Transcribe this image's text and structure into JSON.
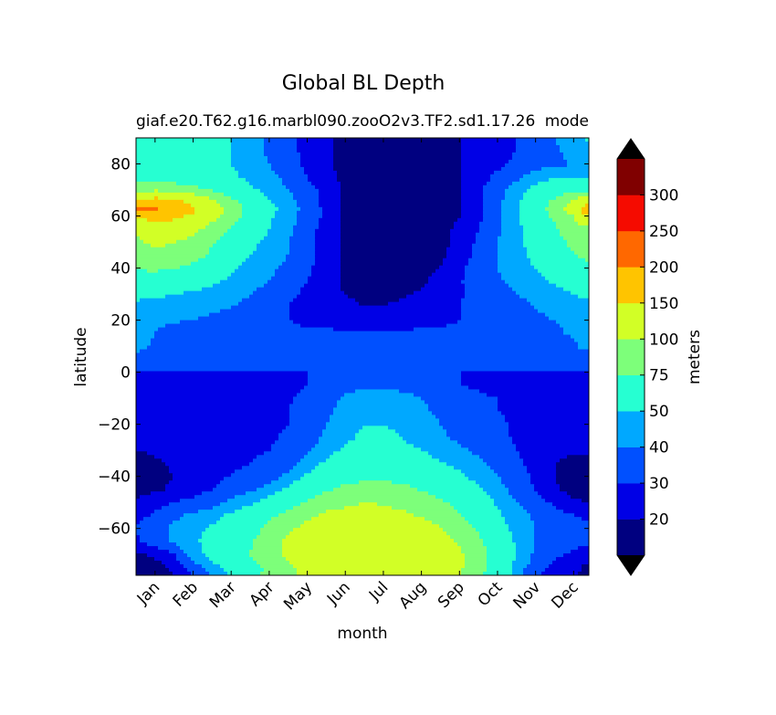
{
  "chart_data": {
    "type": "heatmap",
    "title": "Global BL Depth",
    "subtitle_left": "giaf.e20.T62.g16.marbl090.zooO2v3.TF2.sd1.17.26",
    "subtitle_right": "mode",
    "xlabel": "month",
    "ylabel": "latitude",
    "colorbar_label": "meters",
    "x_ticks": [
      "Jan",
      "Feb",
      "Mar",
      "Apr",
      "May",
      "Jun",
      "Jul",
      "Aug",
      "Sep",
      "Oct",
      "Nov",
      "Dec"
    ],
    "y_ticks": [
      80,
      60,
      40,
      20,
      0,
      -20,
      -40,
      -60
    ],
    "ylim": [
      -78,
      90
    ],
    "xlim": [
      0.5,
      12.4
    ],
    "levels": [
      10,
      20,
      30,
      40,
      50,
      75,
      100,
      150,
      200,
      250,
      300,
      350
    ],
    "level_labels": [
      "20",
      "30",
      "40",
      "50",
      "75",
      "100",
      "150",
      "200",
      "250",
      "300"
    ],
    "colors": [
      "#000080",
      "#0000e6",
      "#0050ff",
      "#00a8ff",
      "#26ffd2",
      "#7dff7a",
      "#d2ff26",
      "#ffc400",
      "#ff6800",
      "#f50b00",
      "#800000"
    ],
    "over_color": "#000000",
    "under_color": "#000000",
    "months": [
      0.5,
      1,
      1.5,
      2,
      2.5,
      3,
      3.5,
      4,
      4.5,
      5,
      5.5,
      6,
      6.5,
      7,
      7.5,
      8,
      8.5,
      9,
      9.5,
      10,
      10.5,
      11,
      11.5,
      12,
      12.4
    ],
    "latitudes": [
      -78,
      -75,
      -70,
      -65,
      -60,
      -55,
      -50,
      -45,
      -40,
      -35,
      -30,
      -25,
      -20,
      -15,
      -10,
      -5,
      0,
      5,
      10,
      15,
      20,
      25,
      30,
      35,
      40,
      45,
      50,
      55,
      60,
      62,
      65,
      70,
      75,
      80,
      85,
      90
    ],
    "z": [
      [
        15,
        14,
        20,
        30,
        40,
        50,
        60,
        85,
        90,
        110,
        115,
        120,
        120,
        120,
        120,
        120,
        110,
        100,
        80,
        60,
        45,
        30,
        25,
        20,
        18
      ],
      [
        15,
        15,
        22,
        35,
        45,
        55,
        65,
        80,
        95,
        110,
        120,
        125,
        125,
        125,
        125,
        125,
        120,
        105,
        85,
        62,
        45,
        35,
        28,
        22,
        18
      ],
      [
        18,
        22,
        30,
        45,
        55,
        65,
        75,
        90,
        105,
        118,
        128,
        130,
        130,
        130,
        130,
        128,
        118,
        105,
        85,
        65,
        50,
        38,
        32,
        28,
        22
      ],
      [
        28,
        35,
        42,
        48,
        54,
        62,
        72,
        90,
        105,
        118,
        126,
        128,
        128,
        128,
        126,
        122,
        112,
        96,
        78,
        60,
        48,
        40,
        36,
        34,
        32
      ],
      [
        32,
        36,
        42,
        47,
        52,
        58,
        66,
        80,
        95,
        108,
        118,
        120,
        122,
        120,
        118,
        112,
        102,
        88,
        72,
        56,
        46,
        40,
        36,
        34,
        32
      ],
      [
        26,
        32,
        38,
        42,
        46,
        52,
        58,
        70,
        82,
        95,
        105,
        108,
        110,
        108,
        105,
        98,
        88,
        75,
        64,
        52,
        44,
        38,
        34,
        30,
        28
      ],
      [
        22,
        26,
        30,
        33,
        36,
        42,
        48,
        56,
        66,
        78,
        88,
        95,
        100,
        98,
        92,
        86,
        78,
        68,
        58,
        48,
        40,
        34,
        28,
        22,
        20
      ],
      [
        16,
        18,
        22,
        26,
        30,
        34,
        38,
        44,
        52,
        62,
        72,
        80,
        84,
        84,
        80,
        74,
        68,
        60,
        52,
        44,
        36,
        30,
        22,
        16,
        15
      ],
      [
        14,
        16,
        20,
        24,
        28,
        30,
        32,
        36,
        42,
        52,
        60,
        66,
        70,
        70,
        68,
        64,
        58,
        52,
        46,
        40,
        34,
        28,
        20,
        14,
        13
      ],
      [
        15,
        18,
        22,
        26,
        28,
        29,
        30,
        32,
        36,
        44,
        52,
        58,
        60,
        60,
        58,
        55,
        51,
        47,
        42,
        37,
        32,
        27,
        21,
        15,
        14
      ],
      [
        20,
        22,
        24,
        26,
        27,
        28,
        29,
        30,
        33,
        38,
        46,
        52,
        54,
        54,
        52,
        50,
        46,
        42,
        38,
        34,
        30,
        26,
        24,
        22,
        22
      ],
      [
        24,
        26,
        27,
        28,
        28,
        28,
        28,
        29,
        31,
        35,
        42,
        48,
        52,
        52,
        50,
        46,
        42,
        38,
        35,
        32,
        29,
        28,
        27,
        26,
        26
      ],
      [
        26,
        27,
        28,
        28,
        28,
        28,
        28,
        29,
        30,
        34,
        40,
        46,
        50,
        50,
        48,
        44,
        40,
        36,
        33,
        31,
        29,
        28,
        28,
        27,
        27
      ],
      [
        27,
        28,
        28,
        28,
        28,
        28,
        28,
        28,
        30,
        33,
        38,
        44,
        48,
        48,
        46,
        42,
        38,
        35,
        32,
        30,
        29,
        28,
        28,
        28,
        28
      ],
      [
        28,
        28,
        28,
        28,
        28,
        28,
        28,
        28,
        29,
        32,
        36,
        42,
        46,
        46,
        44,
        40,
        37,
        34,
        31,
        30,
        29,
        28,
        28,
        28,
        28
      ],
      [
        28,
        28,
        28,
        28,
        28,
        28,
        28,
        28,
        28,
        30,
        32,
        36,
        38,
        38,
        36,
        34,
        32,
        30,
        29,
        28,
        28,
        28,
        28,
        28,
        28
      ],
      [
        30,
        30,
        30,
        30,
        30,
        30,
        30,
        30,
        30,
        30,
        30,
        30,
        30,
        30,
        30,
        30,
        30,
        30,
        30,
        30,
        30,
        30,
        30,
        30,
        30
      ],
      [
        33,
        33,
        33,
        33,
        33,
        33,
        33,
        33,
        33,
        33,
        33,
        33,
        33,
        33,
        33,
        33,
        33,
        33,
        33,
        33,
        33,
        33,
        33,
        33,
        33
      ],
      [
        45,
        38,
        34,
        32,
        31,
        31,
        31,
        31,
        31,
        31,
        31,
        31,
        31,
        31,
        31,
        31,
        31,
        31,
        31,
        31,
        31,
        32,
        34,
        38,
        45
      ],
      [
        46,
        40,
        36,
        34,
        32,
        32,
        32,
        32,
        32,
        32,
        32,
        32,
        32,
        32,
        32,
        32,
        32,
        32,
        32,
        32,
        33,
        35,
        38,
        42,
        46
      ],
      [
        44,
        42,
        41,
        40,
        38,
        36,
        34,
        32,
        30,
        28,
        26,
        24,
        22,
        22,
        24,
        26,
        28,
        30,
        32,
        34,
        36,
        38,
        40,
        42,
        44
      ],
      [
        48,
        46,
        45,
        44,
        42,
        40,
        38,
        34,
        30,
        26,
        24,
        22,
        20,
        20,
        22,
        24,
        26,
        30,
        32,
        34,
        36,
        40,
        44,
        46,
        48
      ],
      [
        52,
        52,
        50,
        48,
        46,
        43,
        40,
        36,
        32,
        28,
        24,
        20,
        18,
        18,
        19,
        21,
        24,
        29,
        33,
        37,
        40,
        43,
        46,
        50,
        52
      ],
      [
        60,
        60,
        58,
        56,
        52,
        48,
        44,
        40,
        35,
        30,
        24,
        18,
        16,
        16,
        17,
        19,
        22,
        29,
        35,
        39,
        42,
        46,
        52,
        56,
        60
      ],
      [
        78,
        80,
        76,
        70,
        60,
        52,
        46,
        42,
        38,
        32,
        25,
        18,
        16,
        16,
        17,
        18,
        20,
        28,
        35,
        40,
        44,
        50,
        58,
        66,
        72
      ],
      [
        90,
        96,
        92,
        84,
        70,
        58,
        50,
        44,
        40,
        34,
        26,
        18,
        16,
        15,
        16,
        17,
        18,
        25,
        33,
        40,
        46,
        54,
        64,
        74,
        80
      ],
      [
        96,
        104,
        100,
        92,
        78,
        64,
        54,
        46,
        40,
        34,
        26,
        18,
        15,
        14,
        15,
        16,
        17,
        23,
        32,
        40,
        46,
        56,
        68,
        80,
        88
      ],
      [
        105,
        125,
        118,
        108,
        90,
        72,
        60,
        50,
        42,
        34,
        26,
        18,
        14,
        13,
        14,
        15,
        17,
        22,
        30,
        38,
        46,
        58,
        72,
        86,
        95
      ],
      [
        150,
        180,
        160,
        140,
        110,
        85,
        65,
        52,
        44,
        36,
        28,
        18,
        14,
        13,
        14,
        15,
        16,
        20,
        28,
        38,
        48,
        62,
        80,
        100,
        140
      ],
      [
        220,
        210,
        190,
        155,
        120,
        90,
        68,
        54,
        45,
        36,
        28,
        18,
        14,
        13,
        14,
        15,
        16,
        20,
        28,
        38,
        48,
        62,
        85,
        120,
        190
      ],
      [
        165,
        185,
        170,
        140,
        110,
        86,
        66,
        52,
        44,
        36,
        26,
        18,
        14,
        13,
        14,
        15,
        16,
        20,
        28,
        38,
        48,
        60,
        82,
        110,
        155
      ],
      [
        90,
        95,
        90,
        82,
        72,
        60,
        52,
        46,
        40,
        34,
        26,
        18,
        15,
        14,
        15,
        16,
        17,
        20,
        28,
        36,
        44,
        54,
        64,
        70,
        70
      ],
      [
        60,
        62,
        62,
        60,
        57,
        52,
        48,
        43,
        37,
        30,
        22,
        18,
        15,
        14,
        15,
        16,
        17,
        20,
        26,
        32,
        38,
        44,
        48,
        48,
        48
      ],
      [
        56,
        58,
        58,
        56,
        54,
        50,
        46,
        40,
        34,
        28,
        22,
        17,
        15,
        14,
        15,
        16,
        17,
        20,
        24,
        28,
        32,
        36,
        38,
        40,
        42
      ],
      [
        54,
        56,
        56,
        56,
        54,
        50,
        44,
        38,
        32,
        28,
        22,
        17,
        15,
        14,
        15,
        16,
        17,
        20,
        23,
        27,
        30,
        34,
        38,
        44,
        48
      ],
      [
        55,
        56,
        56,
        56,
        54,
        50,
        44,
        38,
        32,
        28,
        22,
        17,
        15,
        14,
        15,
        16,
        17,
        20,
        23,
        27,
        30,
        34,
        40,
        46,
        52
      ]
    ]
  }
}
